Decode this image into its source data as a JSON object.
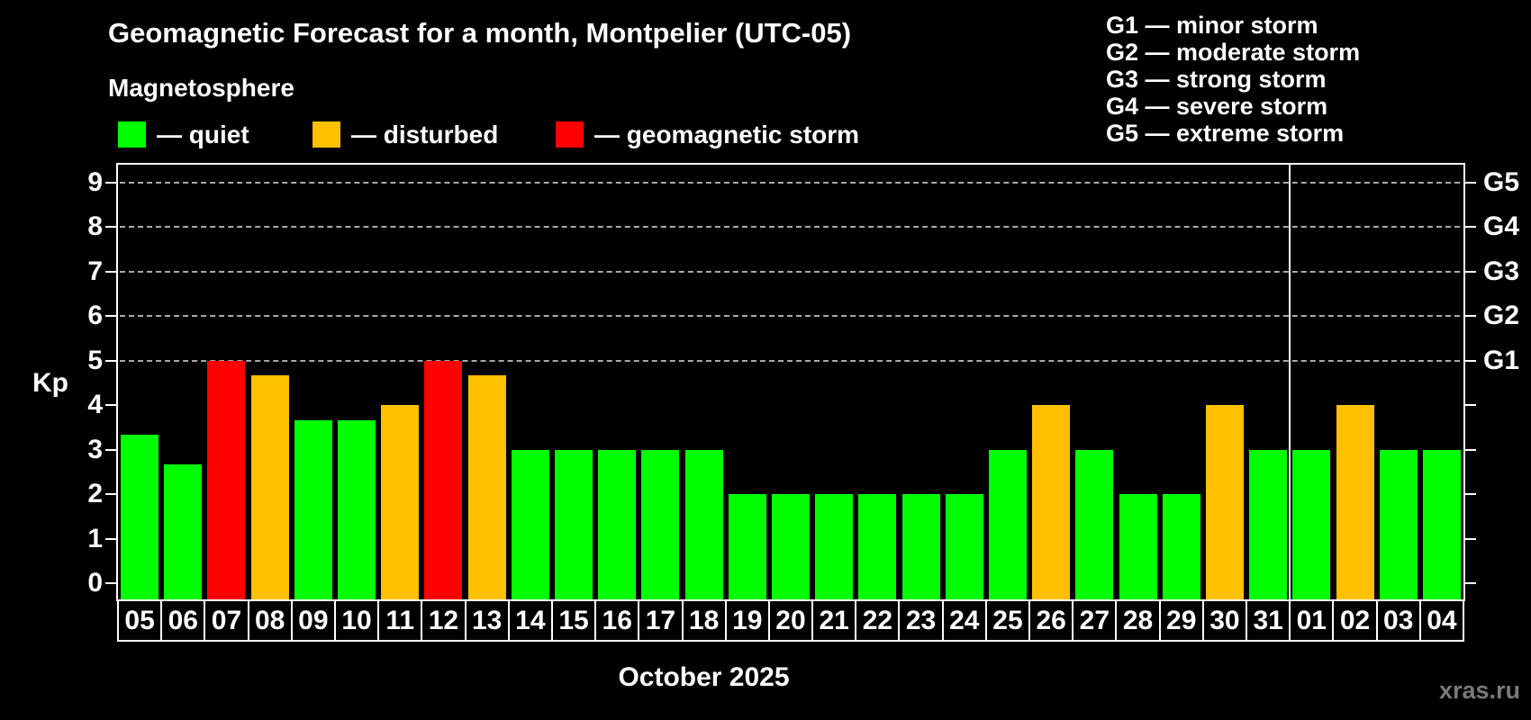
{
  "legend": {
    "quiet_label": "— quiet",
    "disturbed_label": "— disturbed",
    "storm_label": "— geomagnetic storm"
  },
  "colors": {
    "quiet": "#00ff00",
    "disturbed": "#ffc000",
    "storm": "#ff0000",
    "gridline": "#a9a9a9",
    "axis": "#ffffff",
    "watermark": "#7a7a7a"
  },
  "gscale_legend": [
    "G1 — minor storm",
    "G2 — moderate storm",
    "G3 — strong storm",
    "G4 — severe storm",
    "G5 — extreme storm"
  ],
  "watermark": "xras.ru",
  "chart_data": {
    "type": "bar",
    "title": "Geomagnetic Forecast for a month, Montpelier (UTC-05)",
    "subtitle": "Magnetosphere",
    "ylabel": "Kp",
    "xlabel": "October 2025",
    "ylim": [
      -0.4,
      9.4
    ],
    "yticks": [
      0,
      1,
      2,
      3,
      4,
      5,
      6,
      7,
      8,
      9
    ],
    "gridlines_kp": [
      5,
      6,
      7,
      8,
      9
    ],
    "right_axis_labels": [
      {
        "kp": 5,
        "label": "G1"
      },
      {
        "kp": 6,
        "label": "G2"
      },
      {
        "kp": 7,
        "label": "G3"
      },
      {
        "kp": 8,
        "label": "G4"
      },
      {
        "kp": 9,
        "label": "G5"
      }
    ],
    "month_separator_after_index": 26,
    "categories": [
      "05",
      "06",
      "07",
      "08",
      "09",
      "10",
      "11",
      "12",
      "13",
      "14",
      "15",
      "16",
      "17",
      "18",
      "19",
      "20",
      "21",
      "22",
      "23",
      "24",
      "25",
      "26",
      "27",
      "28",
      "29",
      "30",
      "31",
      "01",
      "02",
      "03",
      "04"
    ],
    "series": [
      {
        "name": "Kp forecast",
        "values": [
          3.33,
          2.67,
          5,
          4.67,
          3.67,
          3.67,
          4,
          5,
          4.67,
          3,
          3,
          3,
          3,
          3,
          2,
          2,
          2,
          2,
          2,
          2,
          3,
          4,
          3,
          2,
          2,
          4,
          3,
          3,
          4,
          3,
          3
        ],
        "statuses": [
          "quiet",
          "quiet",
          "storm",
          "disturbed",
          "quiet",
          "quiet",
          "disturbed",
          "storm",
          "disturbed",
          "quiet",
          "quiet",
          "quiet",
          "quiet",
          "quiet",
          "quiet",
          "quiet",
          "quiet",
          "quiet",
          "quiet",
          "quiet",
          "quiet",
          "disturbed",
          "quiet",
          "quiet",
          "quiet",
          "disturbed",
          "quiet",
          "quiet",
          "disturbed",
          "quiet",
          "quiet"
        ]
      }
    ]
  }
}
